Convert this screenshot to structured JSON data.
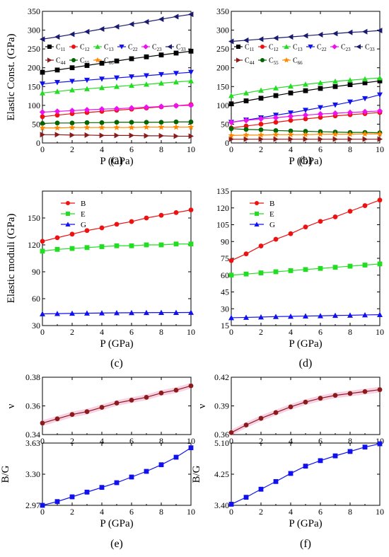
{
  "xaxis": {
    "label": "P (GPa)",
    "ticks": [
      "0",
      "2",
      "4",
      "6",
      "8",
      "10"
    ],
    "range": [
      0,
      10
    ]
  },
  "chart_data": [
    {
      "id": "a",
      "type": "line",
      "caption": "(a)",
      "ylabel": "Elastic Const. (GPa)",
      "ylim": [
        0,
        350
      ],
      "yticks": [
        "0",
        "50",
        "100",
        "150",
        "200",
        "250",
        "300",
        "350"
      ],
      "legend": {
        "placement": "upper-left-two-rows"
      },
      "x": [
        0,
        1,
        2,
        3,
        4,
        5,
        6,
        7,
        8,
        9,
        10
      ],
      "series": [
        {
          "name": "C11",
          "color": "#000000",
          "marker": "square",
          "values": [
            188,
            194,
            200,
            206,
            212,
            218,
            224,
            229,
            234,
            239,
            244
          ]
        },
        {
          "name": "C12",
          "color": "#ee1111",
          "marker": "circle",
          "values": [
            70,
            74,
            78,
            81,
            84,
            87,
            90,
            93,
            96,
            99,
            102
          ]
        },
        {
          "name": "C13",
          "color": "#22dd22",
          "marker": "triangle-up",
          "values": [
            133,
            137,
            141,
            144,
            147,
            150,
            153,
            156,
            159,
            162,
            165
          ]
        },
        {
          "name": "C22",
          "color": "#1111ee",
          "marker": "triangle-down",
          "values": [
            157,
            161,
            164,
            167,
            170,
            173,
            176,
            179,
            182,
            185,
            188
          ]
        },
        {
          "name": "C23",
          "color": "#ee11ee",
          "marker": "diamond",
          "values": [
            82,
            84,
            86,
            88,
            90,
            91,
            93,
            95,
            97,
            99,
            100
          ]
        },
        {
          "name": "C33",
          "color": "#1a1a6e",
          "marker": "triangle-left",
          "values": [
            276,
            282,
            289,
            296,
            303,
            309,
            316,
            322,
            329,
            336,
            342
          ]
        },
        {
          "name": "C44",
          "color": "#8b1a1a",
          "marker": "triangle-right",
          "values": [
            22,
            22,
            21,
            21,
            20,
            20,
            20,
            19,
            19,
            18,
            18
          ]
        },
        {
          "name": "C55",
          "color": "#006400",
          "marker": "circle",
          "values": [
            52,
            53,
            53,
            54,
            54,
            55,
            55,
            55,
            55,
            56,
            56
          ]
        },
        {
          "name": "C66",
          "color": "#ff8800",
          "marker": "star",
          "values": [
            40,
            40,
            41,
            41,
            41,
            41,
            41,
            42,
            42,
            42,
            42
          ]
        }
      ]
    },
    {
      "id": "b",
      "type": "line",
      "caption": "(b)",
      "ylabel": "",
      "ylim": [
        0,
        350
      ],
      "yticks": [
        "0",
        "50",
        "100",
        "150",
        "200",
        "250",
        "300",
        "350"
      ],
      "legend": {
        "placement": "upper-left-two-rows"
      },
      "x": [
        0,
        1,
        2,
        3,
        4,
        5,
        6,
        7,
        8,
        9,
        10
      ],
      "series": [
        {
          "name": "C11",
          "color": "#000000",
          "marker": "square",
          "values": [
            104,
            112,
            119,
            126,
            133,
            139,
            145,
            150,
            155,
            160,
            165
          ]
        },
        {
          "name": "C12",
          "color": "#ee1111",
          "marker": "circle",
          "values": [
            40,
            45,
            50,
            55,
            60,
            64,
            68,
            72,
            75,
            78,
            81
          ]
        },
        {
          "name": "C13",
          "color": "#22dd22",
          "marker": "triangle-up",
          "values": [
            126,
            133,
            140,
            146,
            151,
            156,
            160,
            164,
            167,
            170,
            173
          ]
        },
        {
          "name": "C22",
          "color": "#1111ee",
          "marker": "triangle-down",
          "values": [
            55,
            61,
            67,
            74,
            80,
            87,
            94,
            101,
            109,
            118,
            128
          ]
        },
        {
          "name": "C23",
          "color": "#ee11ee",
          "marker": "diamond",
          "values": [
            55,
            60,
            64,
            67,
            71,
            74,
            77,
            79,
            81,
            83,
            85
          ]
        },
        {
          "name": "C33",
          "color": "#1a1a6e",
          "marker": "triangle-left",
          "values": [
            270,
            273,
            276,
            279,
            282,
            285,
            288,
            291,
            294,
            296,
            299
          ]
        },
        {
          "name": "C44",
          "color": "#8b1a1a",
          "marker": "triangle-right",
          "values": [
            10,
            10,
            10,
            10,
            10,
            10,
            10,
            10,
            10,
            10,
            10
          ]
        },
        {
          "name": "C55",
          "color": "#006400",
          "marker": "circle",
          "values": [
            38,
            36,
            35,
            33,
            32,
            31,
            30,
            29,
            28,
            28,
            27
          ]
        },
        {
          "name": "C66",
          "color": "#ff8800",
          "marker": "star",
          "values": [
            20,
            21,
            21,
            22,
            22,
            22,
            23,
            23,
            23,
            24,
            24
          ]
        }
      ]
    },
    {
      "id": "c",
      "type": "line",
      "caption": "(c)",
      "ylabel": "Elastic moduli (GPa)",
      "ylim": [
        30,
        180
      ],
      "yticks": [
        "30",
        "60",
        "90",
        "120",
        "150"
      ],
      "legend": {
        "placement": "upper-left-column"
      },
      "x": [
        0,
        1,
        2,
        3,
        4,
        5,
        6,
        7,
        8,
        9,
        10
      ],
      "series": [
        {
          "name": "B",
          "color": "#ee1111",
          "marker": "circle",
          "values": [
            124,
            128,
            132,
            136,
            139,
            143,
            146,
            150,
            153,
            156,
            159
          ]
        },
        {
          "name": "E",
          "color": "#22dd22",
          "marker": "square",
          "values": [
            113,
            115,
            116,
            117,
            118,
            119,
            119,
            120,
            120,
            121,
            121
          ]
        },
        {
          "name": "G",
          "color": "#1111ee",
          "marker": "triangle-up",
          "values": [
            43,
            43.3,
            43.6,
            43.8,
            44,
            44.2,
            44.3,
            44.4,
            44.5,
            44.5,
            44.6
          ]
        }
      ]
    },
    {
      "id": "d",
      "type": "line",
      "caption": "(d)",
      "ylabel": "",
      "ylim": [
        15,
        135
      ],
      "yticks": [
        "15",
        "30",
        "45",
        "60",
        "75",
        "90",
        "105",
        "120",
        "135"
      ],
      "legend": {
        "placement": "upper-left-column"
      },
      "x": [
        0,
        1,
        2,
        3,
        4,
        5,
        6,
        7,
        8,
        9,
        10
      ],
      "series": [
        {
          "name": "B",
          "color": "#ee1111",
          "marker": "circle",
          "values": [
            73,
            79,
            86,
            92,
            97,
            103,
            108,
            112,
            117,
            122,
            127
          ]
        },
        {
          "name": "E",
          "color": "#22dd22",
          "marker": "square",
          "values": [
            60,
            61,
            62,
            63,
            64,
            65,
            66,
            67,
            68,
            69,
            70
          ]
        },
        {
          "name": "G",
          "color": "#1111ee",
          "marker": "triangle-up",
          "values": [
            22,
            22.3,
            22.6,
            23,
            23.2,
            23.5,
            23.7,
            24,
            24.2,
            24.5,
            24.7
          ]
        }
      ]
    },
    {
      "id": "e1",
      "type": "line",
      "caption": "",
      "ylabel": "ν",
      "ylim": [
        0.34,
        0.38
      ],
      "yticks": [
        "0.34",
        "0.36",
        "0.38"
      ],
      "band": "#f7bdd9",
      "x": [
        0,
        1,
        2,
        3,
        4,
        5,
        6,
        7,
        8,
        9,
        10
      ],
      "series": [
        {
          "name": "",
          "color": "#8b1a1a",
          "marker": "circle",
          "values": [
            0.348,
            0.351,
            0.354,
            0.356,
            0.359,
            0.362,
            0.364,
            0.366,
            0.369,
            0.371,
            0.374
          ]
        }
      ]
    },
    {
      "id": "e2",
      "type": "line",
      "caption": "(e)",
      "ylabel": "B/G",
      "ylim": [
        2.97,
        3.63
      ],
      "yticks": [
        "2.97",
        "3.30",
        "3.63"
      ],
      "x": [
        0,
        1,
        2,
        3,
        4,
        5,
        6,
        7,
        8,
        9,
        10
      ],
      "series": [
        {
          "name": "",
          "color": "#1111ee",
          "marker": "square",
          "values": [
            2.97,
            3.01,
            3.06,
            3.11,
            3.16,
            3.21,
            3.27,
            3.33,
            3.4,
            3.48,
            3.58
          ]
        }
      ]
    },
    {
      "id": "f1",
      "type": "line",
      "caption": "",
      "ylabel": "ν",
      "ylim": [
        0.36,
        0.42
      ],
      "yticks": [
        "0.36",
        "0.39",
        "0.42"
      ],
      "band": "#f7bdd9",
      "x": [
        0,
        1,
        2,
        3,
        4,
        5,
        6,
        7,
        8,
        9,
        10
      ],
      "series": [
        {
          "name": "",
          "color": "#8b1a1a",
          "marker": "circle",
          "values": [
            0.362,
            0.37,
            0.377,
            0.383,
            0.389,
            0.394,
            0.398,
            0.401,
            0.403,
            0.405,
            0.407
          ]
        }
      ]
    },
    {
      "id": "f2",
      "type": "line",
      "caption": "(f)",
      "ylabel": "B/G",
      "ylim": [
        3.4,
        5.1
      ],
      "yticks": [
        "3.40",
        "4.25",
        "5.10"
      ],
      "x": [
        0,
        1,
        2,
        3,
        4,
        5,
        6,
        7,
        8,
        9,
        10
      ],
      "series": [
        {
          "name": "",
          "color": "#1111ee",
          "marker": "square",
          "values": [
            3.43,
            3.62,
            3.84,
            4.05,
            4.27,
            4.47,
            4.62,
            4.75,
            4.87,
            4.99,
            5.08
          ]
        }
      ]
    }
  ]
}
